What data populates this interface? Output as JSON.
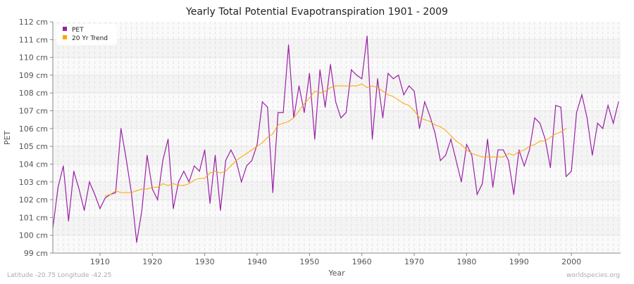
{
  "chart_data": {
    "type": "line",
    "title": "Yearly Total Potential Evapotranspiration 1901 - 2009",
    "xlabel": "Year",
    "ylabel": "PET",
    "ylim": [
      99,
      112
    ],
    "xlim": [
      1901,
      2009
    ],
    "y_ticks": [
      "99 cm",
      "100 cm",
      "101 cm",
      "102 cm",
      "103 cm",
      "104 cm",
      "105 cm",
      "106 cm",
      "107 cm",
      "108 cm",
      "109 cm",
      "110 cm",
      "111 cm",
      "112 cm"
    ],
    "x_ticks": [
      "1910",
      "1920",
      "1930",
      "1940",
      "1950",
      "1960",
      "1970",
      "1980",
      "1990",
      "2000"
    ],
    "grid": true,
    "legend_position": "top-left",
    "series": [
      {
        "name": "PET",
        "color": "#9b1fa8",
        "x_start": 1901,
        "values": [
          100.4,
          102.7,
          103.9,
          100.8,
          103.6,
          102.6,
          101.4,
          103.0,
          102.3,
          101.5,
          102.1,
          102.3,
          102.4,
          106.0,
          104.3,
          102.4,
          99.6,
          101.4,
          104.5,
          102.6,
          102.0,
          104.2,
          105.4,
          101.5,
          103.0,
          103.6,
          103.0,
          103.9,
          103.6,
          104.8,
          101.8,
          104.5,
          101.4,
          104.2,
          104.8,
          104.2,
          103.0,
          103.9,
          104.2,
          105.1,
          107.5,
          107.2,
          102.4,
          106.9,
          106.9,
          110.7,
          106.6,
          108.4,
          106.9,
          109.1,
          105.4,
          109.3,
          107.2,
          109.6,
          107.5,
          106.6,
          106.9,
          109.3,
          109.0,
          108.8,
          111.2,
          105.4,
          108.8,
          106.6,
          109.1,
          108.8,
          109.0,
          107.9,
          108.4,
          108.1,
          106.0,
          107.5,
          106.7,
          105.7,
          104.2,
          104.5,
          105.4,
          104.2,
          103.0,
          105.1,
          104.5,
          102.3,
          102.9,
          105.4,
          102.7,
          104.8,
          104.8,
          104.2,
          102.3,
          104.8,
          103.9,
          104.8,
          106.6,
          106.3,
          105.4,
          103.8,
          107.3,
          107.2,
          103.3,
          103.6,
          106.9,
          107.9,
          106.6,
          104.5,
          106.3,
          106.0,
          107.3,
          106.3,
          107.5
        ]
      },
      {
        "name": "20 Yr Trend",
        "color": "#ffa500",
        "x_start": 1911,
        "values": [
          102.2,
          102.3,
          102.5,
          102.4,
          102.4,
          102.4,
          102.5,
          102.6,
          102.6,
          102.7,
          102.7,
          102.9,
          102.8,
          102.9,
          102.8,
          102.8,
          102.9,
          103.1,
          103.2,
          103.2,
          103.5,
          103.6,
          103.5,
          103.6,
          103.9,
          104.2,
          104.4,
          104.6,
          104.8,
          105.0,
          105.2,
          105.5,
          105.7,
          106.2,
          106.3,
          106.4,
          106.6,
          107.0,
          107.4,
          107.7,
          108.1,
          108.0,
          108.1,
          108.3,
          108.4,
          108.4,
          108.4,
          108.4,
          108.4,
          108.5,
          108.3,
          108.4,
          108.3,
          108.1,
          107.9,
          107.8,
          107.6,
          107.4,
          107.3,
          107.0,
          106.6,
          106.5,
          106.4,
          106.2,
          106.1,
          105.9,
          105.6,
          105.3,
          105.1,
          104.8,
          104.6,
          104.5,
          104.4,
          104.4,
          104.4,
          104.4,
          104.4,
          104.6,
          104.5,
          104.7,
          104.8,
          105.0,
          105.1,
          105.3,
          105.3,
          105.5,
          105.7,
          105.8,
          106.0
        ]
      }
    ]
  },
  "footer": {
    "location": "Latitude -20.75 Longitude -42.25",
    "source": "worldspecies.org"
  }
}
